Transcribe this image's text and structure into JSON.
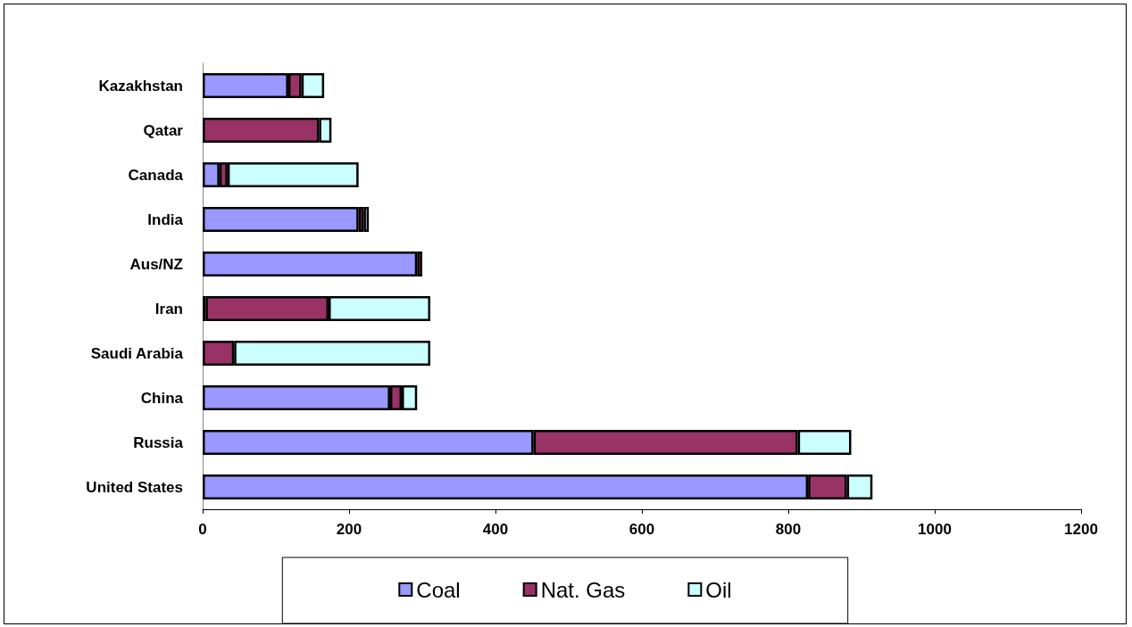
{
  "chart_data": {
    "type": "bar",
    "orientation": "horizontal",
    "stacked": true,
    "categories": [
      "Kazakhstan",
      "Qatar",
      "Canada",
      "India",
      "Aus/NZ",
      "Iran",
      "Saudi Arabia",
      "China",
      "Russia",
      "United States"
    ],
    "series": [
      {
        "name": "Coal",
        "color": "#9999ff",
        "values": [
          117,
          null,
          23,
          213,
          293,
          4,
          null,
          256,
          452,
          827
        ]
      },
      {
        "name": "Nat. Gas",
        "color": "#993366",
        "values": [
          18,
          159,
          11,
          7,
          7,
          168,
          43,
          16,
          361,
          53
        ]
      },
      {
        "name": "Oil",
        "color": "#ccffff",
        "values": [
          31,
          17,
          179,
          7,
          null,
          139,
          268,
          21,
          73,
          35
        ]
      }
    ],
    "xlim": [
      0,
      1200
    ],
    "xticks": [
      0,
      200,
      400,
      600,
      800,
      1000,
      1200
    ],
    "grid": false,
    "legend": "bottom"
  }
}
